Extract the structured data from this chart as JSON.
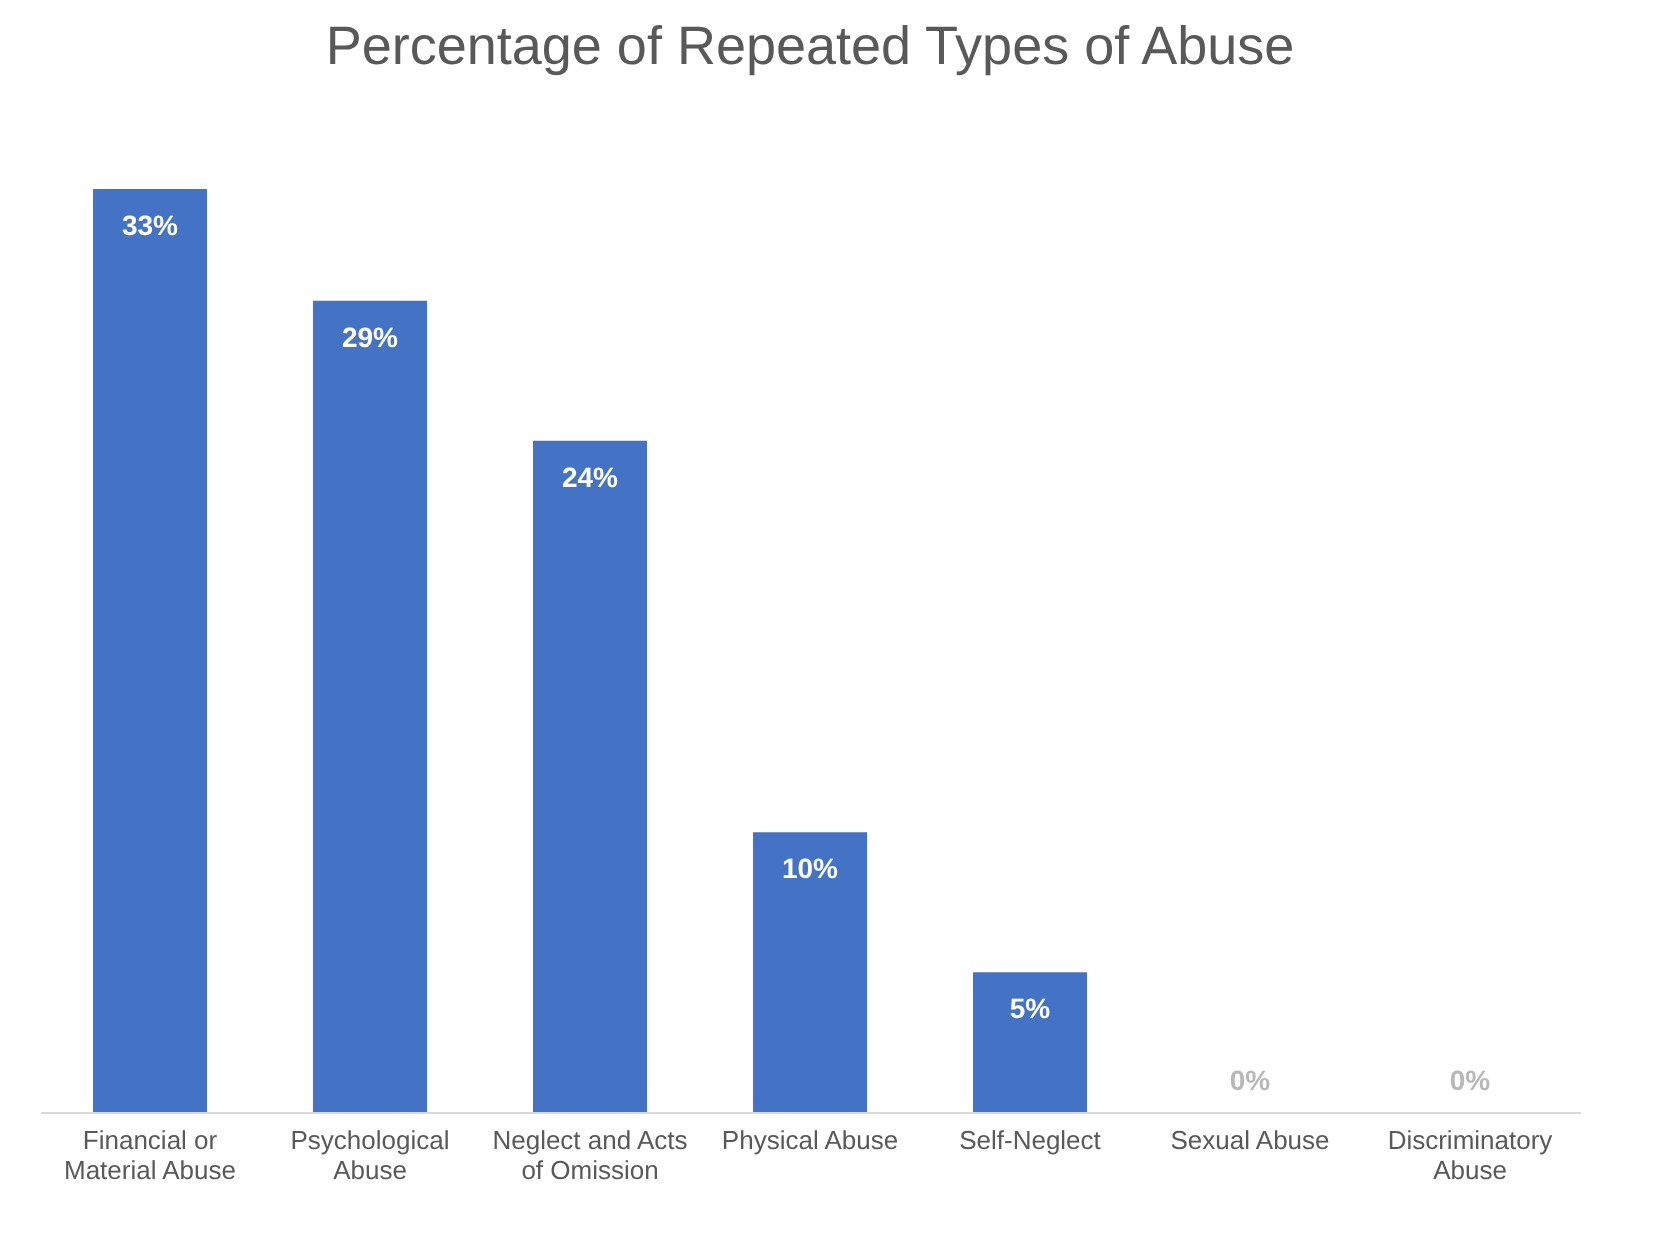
{
  "chart_data": {
    "type": "bar",
    "title": "Percentage of Repeated Types of Abuse",
    "categories": [
      "Financial or Material Abuse",
      "Psychological Abuse",
      "Neglect and Acts of Omission",
      "Physical Abuse",
      "Self-Neglect",
      "Sexual Abuse",
      "Discriminatory Abuse"
    ],
    "values": [
      33,
      29,
      24,
      10,
      5,
      0,
      0
    ],
    "value_labels": [
      "33%",
      "29%",
      "24%",
      "10%",
      "5%",
      "0%",
      "0%"
    ],
    "color": "#4472c4"
  }
}
